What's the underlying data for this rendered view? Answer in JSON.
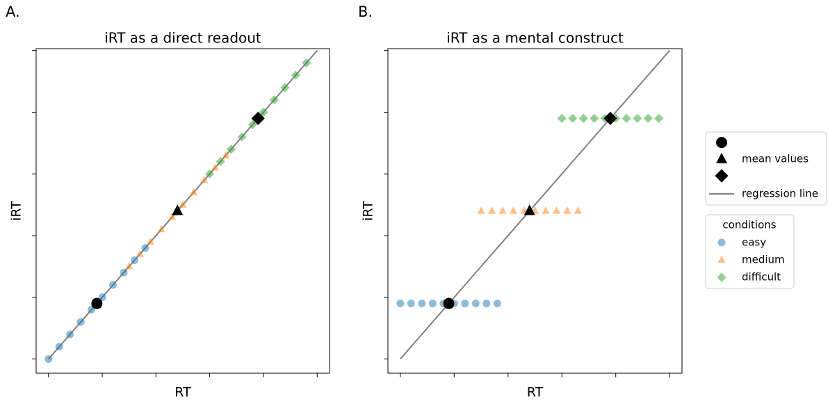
{
  "chart_data": [
    {
      "type": "scatter",
      "panel": "A.",
      "title": "iRT as a direct readout",
      "x_label": "RT",
      "y_label": "iRT",
      "xlim": [
        -0.23,
        5.23
      ],
      "ylim": [
        -0.23,
        5.03
      ],
      "xticks": [
        0,
        1,
        2,
        3,
        4,
        5
      ],
      "yticks": [
        0,
        1,
        2,
        3,
        4,
        5
      ],
      "series": [
        {
          "name": "easy",
          "color": "#1f77b4",
          "marker": "circle",
          "x": [
            0,
            0.2,
            0.4,
            0.6,
            0.8,
            1.0,
            1.2,
            1.4,
            1.6,
            1.8
          ],
          "values": [
            0,
            0.2,
            0.4,
            0.6,
            0.8,
            1.0,
            1.2,
            1.4,
            1.6,
            1.8
          ]
        },
        {
          "name": "medium",
          "color": "#ff7f0e",
          "marker": "triangle",
          "x": [
            1.5,
            1.7,
            1.9,
            2.1,
            2.3,
            2.5,
            2.7,
            2.9,
            3.1,
            3.3
          ],
          "values": [
            1.5,
            1.7,
            1.9,
            2.1,
            2.3,
            2.5,
            2.7,
            2.9,
            3.1,
            3.3
          ]
        },
        {
          "name": "difficult",
          "color": "#2ca02c",
          "marker": "diamond",
          "x": [
            3.0,
            3.2,
            3.4,
            3.6,
            3.8,
            4.0,
            4.2,
            4.4,
            4.6,
            4.8
          ],
          "values": [
            3.0,
            3.2,
            3.4,
            3.6,
            3.8,
            4.0,
            4.2,
            4.4,
            4.6,
            4.8
          ]
        }
      ],
      "means": {
        "color": "#000000",
        "x": [
          0.9,
          2.4,
          3.9
        ],
        "values": [
          0.9,
          2.4,
          3.9
        ]
      },
      "regression": {
        "color": "#808080",
        "x": [
          0,
          5
        ],
        "values": [
          0,
          5
        ]
      }
    },
    {
      "type": "scatter",
      "panel": "B.",
      "title": "iRT as a mental construct",
      "x_label": "RT",
      "y_label": "iRT",
      "xlim": [
        -0.23,
        5.23
      ],
      "ylim": [
        -0.23,
        5.03
      ],
      "xticks": [
        0,
        1,
        2,
        3,
        4,
        5
      ],
      "yticks": [
        0,
        1,
        2,
        3,
        4,
        5
      ],
      "series": [
        {
          "name": "easy",
          "color": "#1f77b4",
          "marker": "circle",
          "x": [
            0,
            0.2,
            0.4,
            0.6,
            0.8,
            1.0,
            1.2,
            1.4,
            1.6,
            1.8
          ],
          "values": [
            0.9,
            0.9,
            0.9,
            0.9,
            0.9,
            0.9,
            0.9,
            0.9,
            0.9,
            0.9
          ]
        },
        {
          "name": "medium",
          "color": "#ff7f0e",
          "marker": "triangle",
          "x": [
            1.5,
            1.7,
            1.9,
            2.1,
            2.3,
            2.5,
            2.7,
            2.9,
            3.1,
            3.3
          ],
          "values": [
            2.4,
            2.4,
            2.4,
            2.4,
            2.4,
            2.4,
            2.4,
            2.4,
            2.4,
            2.4
          ]
        },
        {
          "name": "difficult",
          "color": "#2ca02c",
          "marker": "diamond",
          "x": [
            3.0,
            3.2,
            3.4,
            3.6,
            3.8,
            4.0,
            4.2,
            4.4,
            4.6,
            4.8
          ],
          "values": [
            3.9,
            3.9,
            3.9,
            3.9,
            3.9,
            3.9,
            3.9,
            3.9,
            3.9,
            3.9
          ]
        }
      ],
      "means": {
        "color": "#000000",
        "x": [
          0.9,
          2.4,
          3.9
        ],
        "values": [
          0.9,
          2.4,
          3.9
        ]
      },
      "regression": {
        "color": "#808080",
        "x": [
          0,
          5
        ],
        "values": [
          0,
          5
        ]
      }
    }
  ],
  "legend": {
    "mean_label": "mean values",
    "line_label": "regression line",
    "title": "conditions"
  }
}
